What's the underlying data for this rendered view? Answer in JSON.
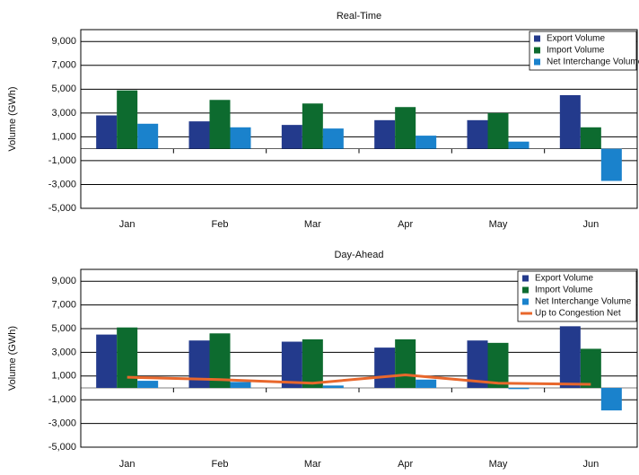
{
  "chart_data": [
    {
      "type": "bar",
      "title": "Real-Time",
      "y_label": "Volume (GWh)",
      "categories": [
        "Jan",
        "Feb",
        "Mar",
        "Apr",
        "May",
        "Jun"
      ],
      "series": [
        {
          "name": "Export Volume",
          "color": "#233a8c",
          "values": [
            2800,
            2300,
            2000,
            2400,
            2400,
            4500
          ]
        },
        {
          "name": "Import Volume",
          "color": "#0d6b2f",
          "values": [
            4900,
            4100,
            3800,
            3500,
            3000,
            1800
          ]
        },
        {
          "name": "Net Interchange Volume",
          "color": "#1a82cc",
          "values": [
            2100,
            1800,
            1700,
            1100,
            600,
            -2700
          ]
        }
      ],
      "ylim": [
        -5000,
        10000
      ],
      "yticks": [
        {
          "value": -5000,
          "label": "-5,000"
        },
        {
          "value": -3000,
          "label": "-3,000"
        },
        {
          "value": -1000,
          "label": "-1,000"
        },
        {
          "value": 1000,
          "label": "1,000"
        },
        {
          "value": 3000,
          "label": "3,000"
        },
        {
          "value": 5000,
          "label": "5,000"
        },
        {
          "value": 7000,
          "label": "7,000"
        },
        {
          "value": 9000,
          "label": "9,000"
        }
      ],
      "grid": true,
      "legend": "top-right"
    },
    {
      "type": "bar",
      "title": "Day-Ahead",
      "y_label": "Volume (GWh)",
      "categories": [
        "Jan",
        "Feb",
        "Mar",
        "Apr",
        "May",
        "Jun"
      ],
      "series": [
        {
          "name": "Export Volume",
          "color": "#233a8c",
          "values": [
            4500,
            4000,
            3900,
            3400,
            4000,
            5200
          ]
        },
        {
          "name": "Import Volume",
          "color": "#0d6b2f",
          "values": [
            5100,
            4600,
            4100,
            4100,
            3800,
            3300
          ]
        },
        {
          "name": "Net Interchange Volume",
          "color": "#1a82cc",
          "values": [
            600,
            500,
            200,
            700,
            -100,
            -1900
          ]
        },
        {
          "name": "Up to Congestion Net",
          "color": "#e8672c",
          "type": "line",
          "values": [
            900,
            700,
            400,
            1100,
            400,
            300
          ]
        }
      ],
      "ylim": [
        -5000,
        10000
      ],
      "yticks": [
        {
          "value": -5000,
          "label": "-5,000"
        },
        {
          "value": -3000,
          "label": "-3,000"
        },
        {
          "value": -1000,
          "label": "-1,000"
        },
        {
          "value": 1000,
          "label": "1,000"
        },
        {
          "value": 3000,
          "label": "3,000"
        },
        {
          "value": 5000,
          "label": "5,000"
        },
        {
          "value": 7000,
          "label": "7,000"
        },
        {
          "value": 9000,
          "label": "9,000"
        }
      ],
      "grid": true,
      "legend": "top-right"
    }
  ]
}
